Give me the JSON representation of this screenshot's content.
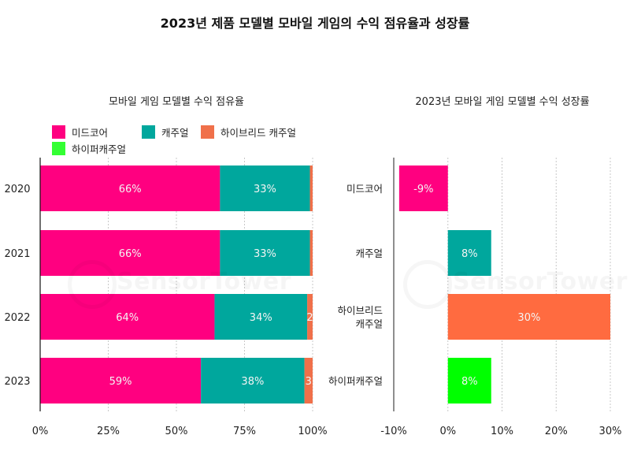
{
  "title": "2023년 제품 모델별 모바일 게임의 수익 점유율과 성장률",
  "watermark": "SensorTower",
  "colors": {
    "midcore": "#FF0080",
    "casual": "#00A79D",
    "hybrid_casual": "#F0704A",
    "hyper_casual": "#33FF33",
    "growth_hybrid": "#FF6B40",
    "growth_hyper": "#00FF00"
  },
  "chart_data": [
    {
      "type": "bar",
      "orientation": "horizontal",
      "stacked": true,
      "title": "모바일 게임 모델별 수익 점유율",
      "categories": [
        "2020",
        "2021",
        "2022",
        "2023"
      ],
      "series": [
        {
          "name": "미드코어",
          "values": [
            66,
            66,
            64,
            59
          ],
          "labels": [
            "66%",
            "66%",
            "64%",
            "59%"
          ]
        },
        {
          "name": "캐주얼",
          "values": [
            33,
            33,
            34,
            38
          ],
          "labels": [
            "33%",
            "33%",
            "34%",
            "38%"
          ]
        },
        {
          "name": "하이브리드 캐주얼",
          "values": [
            1,
            1,
            2,
            3
          ],
          "labels": [
            "",
            "",
            "2",
            "3"
          ]
        },
        {
          "name": "하이퍼캐주얼",
          "values": [
            0,
            0,
            0,
            0
          ],
          "labels": [
            "",
            "",
            "",
            ""
          ]
        }
      ],
      "xlim": [
        0,
        100
      ],
      "xticks": [
        "0%",
        "25%",
        "50%",
        "75%",
        "100%"
      ],
      "xtick_values": [
        0,
        25,
        50,
        75,
        100
      ],
      "grid": true,
      "legend": "top-left",
      "xlabel": "",
      "ylabel": ""
    },
    {
      "type": "bar",
      "orientation": "horizontal",
      "title": "2023년 모바일 게임 모델별 수익 성장률",
      "categories": [
        "미드코어",
        "캐주얼",
        "하이브리드\n캐주얼",
        "하이퍼캐주얼"
      ],
      "category_lines": [
        [
          "미드코어"
        ],
        [
          "캐주얼"
        ],
        [
          "하이브리드",
          "캐주얼"
        ],
        [
          "하이퍼캐주얼"
        ]
      ],
      "values": [
        -9,
        8,
        30,
        8
      ],
      "labels": [
        "-9%",
        "8%",
        "30%",
        "8%"
      ],
      "xlim": [
        -10,
        30
      ],
      "xticks": [
        "-10%",
        "0%",
        "10%",
        "20%",
        "30%"
      ],
      "xtick_values": [
        -10,
        0,
        10,
        20,
        30
      ],
      "grid": true,
      "xlabel": "",
      "ylabel": ""
    }
  ]
}
